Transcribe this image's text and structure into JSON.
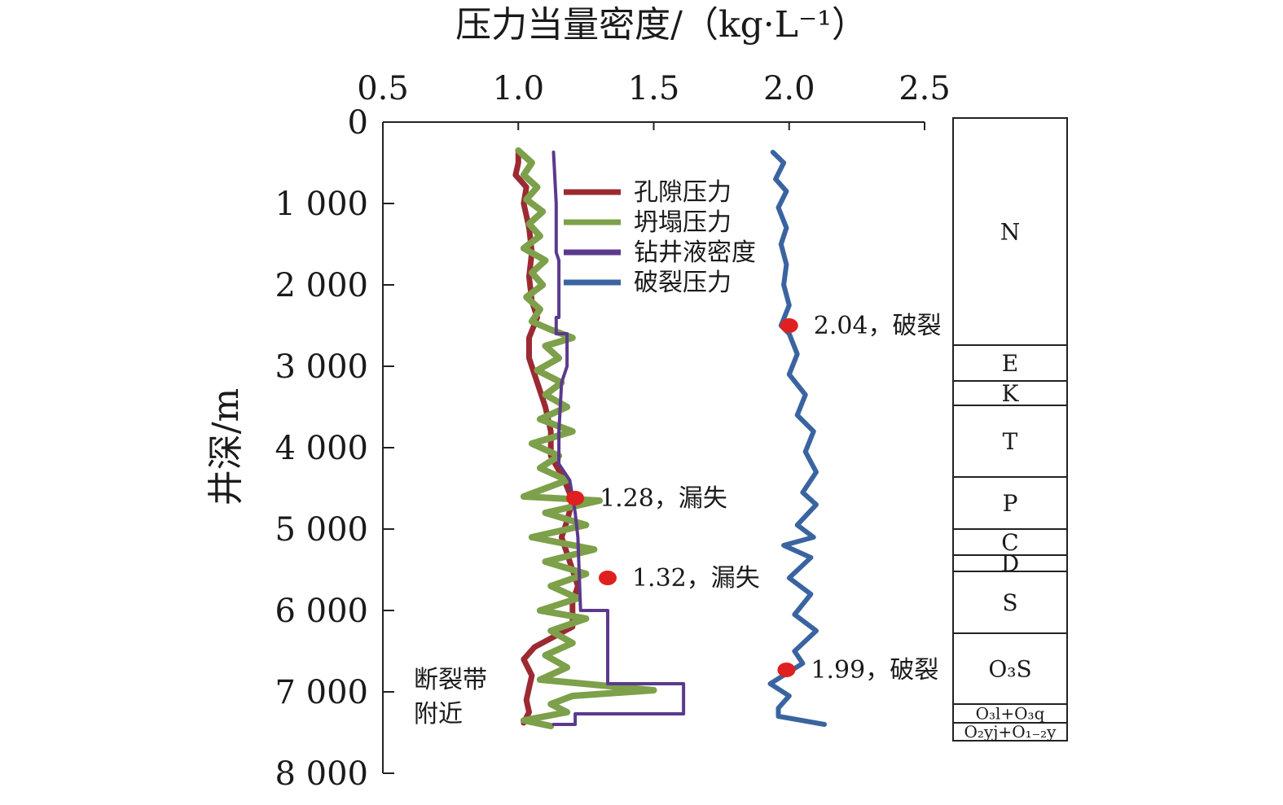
{
  "chart_data": {
    "type": "line",
    "title": "压力当量密度/（kg·L⁻¹）",
    "xlabel": "压力当量密度/（kg·L⁻¹）",
    "ylabel": "井深/m",
    "xlim": [
      0.5,
      2.5
    ],
    "ylim": [
      0,
      8000
    ],
    "y_inverted": true,
    "x_axis_position": "top",
    "x_ticks": [
      0.5,
      1.0,
      1.5,
      2.0,
      2.5
    ],
    "x_tick_labels": [
      "0.5",
      "1.0",
      "1.5",
      "2.0",
      "2.5"
    ],
    "y_ticks": [
      0,
      1000,
      2000,
      3000,
      4000,
      5000,
      6000,
      7000,
      8000
    ],
    "y_tick_labels": [
      "0",
      "1 000",
      "2 000",
      "3 000",
      "4 000",
      "5 000",
      "6 000",
      "7 000",
      "8 000"
    ],
    "legend_position": "top-left inside plot",
    "series": [
      {
        "name": "孔隙压力",
        "color": "#9b2a32",
        "points": [
          [
            1.0,
            350
          ],
          [
            1.0,
            500
          ],
          [
            0.99,
            650
          ],
          [
            1.03,
            800
          ],
          [
            1.02,
            1000
          ],
          [
            1.04,
            1300
          ],
          [
            1.05,
            1600
          ],
          [
            1.04,
            1900
          ],
          [
            1.05,
            2200
          ],
          [
            1.07,
            2400
          ],
          [
            1.04,
            2650
          ],
          [
            1.04,
            2900
          ],
          [
            1.07,
            3200
          ],
          [
            1.1,
            3500
          ],
          [
            1.12,
            3800
          ],
          [
            1.12,
            4100
          ],
          [
            1.17,
            4400
          ],
          [
            1.2,
            4650
          ],
          [
            1.18,
            4900
          ],
          [
            1.16,
            5100
          ],
          [
            1.18,
            5300
          ],
          [
            1.2,
            5500
          ],
          [
            1.22,
            5700
          ],
          [
            1.2,
            5900
          ],
          [
            1.2,
            6200
          ],
          [
            1.06,
            6450
          ],
          [
            1.02,
            6600
          ],
          [
            1.05,
            6800
          ],
          [
            1.04,
            6950
          ],
          [
            1.03,
            7100
          ],
          [
            1.04,
            7250
          ],
          [
            1.02,
            7380
          ]
        ]
      },
      {
        "name": "坍塌压力",
        "color": "#7da04a",
        "points": [
          [
            1.0,
            350
          ],
          [
            1.05,
            500
          ],
          [
            1.02,
            650
          ],
          [
            1.07,
            800
          ],
          [
            1.03,
            950
          ],
          [
            1.09,
            1100
          ],
          [
            1.04,
            1250
          ],
          [
            1.08,
            1400
          ],
          [
            1.02,
            1550
          ],
          [
            1.1,
            1700
          ],
          [
            1.05,
            1850
          ],
          [
            1.09,
            2000
          ],
          [
            1.03,
            2150
          ],
          [
            1.08,
            2300
          ],
          [
            1.05,
            2450
          ],
          [
            1.12,
            2550
          ],
          [
            1.2,
            2650
          ],
          [
            1.1,
            2750
          ],
          [
            1.15,
            2900
          ],
          [
            1.07,
            3050
          ],
          [
            1.16,
            3200
          ],
          [
            1.1,
            3350
          ],
          [
            1.18,
            3500
          ],
          [
            1.08,
            3650
          ],
          [
            1.2,
            3800
          ],
          [
            1.05,
            3950
          ],
          [
            1.15,
            4100
          ],
          [
            1.08,
            4250
          ],
          [
            1.18,
            4400
          ],
          [
            1.02,
            4600
          ],
          [
            1.3,
            4650
          ],
          [
            1.1,
            4800
          ],
          [
            1.25,
            4950
          ],
          [
            1.05,
            5100
          ],
          [
            1.28,
            5250
          ],
          [
            1.1,
            5400
          ],
          [
            1.25,
            5550
          ],
          [
            1.12,
            5700
          ],
          [
            1.22,
            5850
          ],
          [
            1.08,
            6000
          ],
          [
            1.25,
            6100
          ],
          [
            1.12,
            6250
          ],
          [
            1.2,
            6400
          ],
          [
            1.1,
            6550
          ],
          [
            1.18,
            6700
          ],
          [
            1.08,
            6850
          ],
          [
            1.5,
            6980
          ],
          [
            1.2,
            7050
          ],
          [
            1.12,
            7150
          ],
          [
            1.18,
            7250
          ],
          [
            1.02,
            7350
          ],
          [
            1.12,
            7420
          ]
        ]
      },
      {
        "name": "钻井液密度",
        "color": "#5b3a8c",
        "points": [
          [
            1.13,
            370
          ],
          [
            1.14,
            1000
          ],
          [
            1.14,
            1600
          ],
          [
            1.15,
            1700
          ],
          [
            1.15,
            2400
          ],
          [
            1.14,
            2400
          ],
          [
            1.14,
            2600
          ],
          [
            1.18,
            2600
          ],
          [
            1.18,
            3000
          ],
          [
            1.16,
            3200
          ],
          [
            1.15,
            3800
          ],
          [
            1.15,
            4200
          ],
          [
            1.19,
            4400
          ],
          [
            1.21,
            4800
          ],
          [
            1.22,
            5100
          ],
          [
            1.23,
            6000
          ],
          [
            1.33,
            6000
          ],
          [
            1.33,
            6900
          ],
          [
            1.61,
            6900
          ],
          [
            1.61,
            7270
          ],
          [
            1.21,
            7270
          ],
          [
            1.21,
            7400
          ],
          [
            1.13,
            7400
          ]
        ]
      },
      {
        "name": "破裂压力",
        "color": "#3a64a0",
        "points": [
          [
            1.94,
            370
          ],
          [
            1.98,
            500
          ],
          [
            1.95,
            700
          ],
          [
            1.99,
            850
          ],
          [
            1.96,
            1050
          ],
          [
            1.99,
            1300
          ],
          [
            1.97,
            1500
          ],
          [
            1.99,
            1750
          ],
          [
            1.98,
            2000
          ],
          [
            2.0,
            2250
          ],
          [
            1.97,
            2500
          ],
          [
            2.0,
            2600
          ],
          [
            2.03,
            2850
          ],
          [
            2.0,
            3100
          ],
          [
            2.06,
            3350
          ],
          [
            2.03,
            3600
          ],
          [
            2.09,
            3800
          ],
          [
            2.06,
            4050
          ],
          [
            2.1,
            4300
          ],
          [
            2.05,
            4550
          ],
          [
            2.1,
            4700
          ],
          [
            2.03,
            4950
          ],
          [
            2.09,
            5100
          ],
          [
            1.98,
            5200
          ],
          [
            2.08,
            5350
          ],
          [
            2.0,
            5600
          ],
          [
            2.08,
            5800
          ],
          [
            2.02,
            6050
          ],
          [
            2.1,
            6250
          ],
          [
            2.02,
            6500
          ],
          [
            2.05,
            6650
          ],
          [
            1.93,
            6900
          ],
          [
            2.0,
            7050
          ],
          [
            1.96,
            7200
          ],
          [
            1.96,
            7300
          ],
          [
            2.13,
            7400
          ]
        ]
      }
    ],
    "markers": [
      {
        "x": 2.0,
        "y": 2500,
        "label": "2.04，破裂"
      },
      {
        "x": 1.21,
        "y": 4620,
        "label": "1.28，漏失"
      },
      {
        "x": 1.33,
        "y": 5600,
        "label": "1.32，漏失"
      },
      {
        "x": 1.99,
        "y": 6730,
        "label": "1.99，破裂"
      }
    ],
    "annotations": [
      {
        "text_lines": [
          "断裂带",
          "附近"
        ],
        "y": 6800
      }
    ],
    "strata": [
      {
        "label": "N",
        "top": 0,
        "bottom": 2740
      },
      {
        "label": "E",
        "top": 2740,
        "bottom": 3180
      },
      {
        "label": "K",
        "top": 3180,
        "bottom": 3480
      },
      {
        "label": "T",
        "top": 3480,
        "bottom": 4360
      },
      {
        "label": "P",
        "top": 4360,
        "bottom": 5000
      },
      {
        "label": "C",
        "top": 5000,
        "bottom": 5320
      },
      {
        "label": "D",
        "top": 5320,
        "bottom": 5520
      },
      {
        "label": "S",
        "top": 5520,
        "bottom": 6280
      },
      {
        "label": "O₃S",
        "top": 6280,
        "bottom": 7150
      },
      {
        "label": "O₃l+O₃q",
        "top": 7150,
        "bottom": 7380
      },
      {
        "label": "O₂yj+O₁₋₂y",
        "top": 7380,
        "bottom": 7600
      }
    ]
  }
}
